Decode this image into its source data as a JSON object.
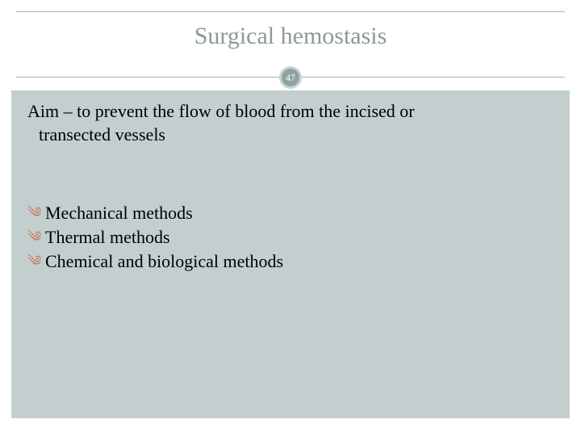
{
  "slide": {
    "title": "Surgical hemostasis",
    "page_number": "47",
    "aim_line1": "Aim – to prevent the flow of blood from the incised or",
    "aim_line2": "transected vessels",
    "bullets": {
      "b1": "Mechanical methods",
      "b2": "Thermal methods",
      "b3": "Chemical and biological methods"
    },
    "colors": {
      "title_color": "#8a9a9a",
      "body_bg": "#c3cece",
      "bullet_color": "#c77a5a",
      "badge_bg": "#8fa3a3",
      "badge_ring": "#c9d4d4",
      "line_color": "#b0b0b0"
    },
    "bullet_glyph": "༄"
  }
}
